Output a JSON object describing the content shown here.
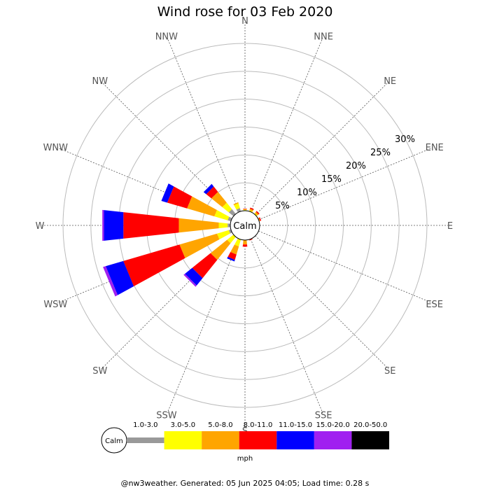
{
  "chart_data": {
    "type": "wind-rose",
    "title": "Wind rose for 03 Feb 2020",
    "directions": [
      "N",
      "NNE",
      "NE",
      "ENE",
      "E",
      "ESE",
      "SE",
      "SSE",
      "S",
      "SSW",
      "SW",
      "WSW",
      "W",
      "WNW",
      "NW",
      "NNW"
    ],
    "radial_ticks": [
      "5%",
      "10%",
      "15%",
      "20%",
      "25%",
      "30%"
    ],
    "rmax_percent": 30,
    "center_label": "Calm",
    "unit": "mph",
    "bins": [
      {
        "label": "1.0-3.0",
        "color": "#999999"
      },
      {
        "label": "3.0-5.0",
        "color": "#ffff00"
      },
      {
        "label": "5.0-8.0",
        "color": "#ffa500"
      },
      {
        "label": "8.0-11.0",
        "color": "#ff0000"
      },
      {
        "label": "11.0-15.0",
        "color": "#0000ff"
      },
      {
        "label": "15.0-20.0",
        "color": "#a020f0"
      },
      {
        "label": "20.0-50.0",
        "color": "#000000"
      }
    ],
    "series": [
      {
        "direction": "N",
        "values": [
          0.1,
          0.1,
          0.1,
          0.1,
          0,
          0,
          0
        ]
      },
      {
        "direction": "NNE",
        "values": [
          0,
          0.2,
          0.3,
          0.2,
          0,
          0,
          0
        ]
      },
      {
        "direction": "NE",
        "values": [
          0,
          0.2,
          0.3,
          0.2,
          0,
          0,
          0
        ]
      },
      {
        "direction": "ENE",
        "values": [
          0,
          0,
          0.2,
          0.2,
          0,
          0,
          0
        ]
      },
      {
        "direction": "E",
        "values": [
          0,
          0,
          0,
          0,
          0,
          0,
          0
        ]
      },
      {
        "direction": "ESE",
        "values": [
          0,
          0,
          0,
          0,
          0,
          0,
          0
        ]
      },
      {
        "direction": "SE",
        "values": [
          0,
          0,
          0,
          0,
          0,
          0,
          0
        ]
      },
      {
        "direction": "SSE",
        "values": [
          0,
          0,
          0.1,
          0.1,
          0,
          0,
          0
        ]
      },
      {
        "direction": "S",
        "values": [
          0,
          0,
          0.8,
          0.4,
          0,
          0,
          0
        ]
      },
      {
        "direction": "SSW",
        "values": [
          0,
          1.3,
          1.5,
          1.0,
          0.3,
          0,
          0
        ]
      },
      {
        "direction": "SW",
        "values": [
          0,
          1.5,
          3.8,
          4.2,
          1.7,
          0.3,
          0
        ]
      },
      {
        "direction": "WSW",
        "values": [
          0.4,
          2.2,
          7.0,
          10.5,
          3.3,
          0.5,
          0
        ]
      },
      {
        "direction": "W",
        "values": [
          0.5,
          1.6,
          7.2,
          10.0,
          3.5,
          0.3,
          0
        ]
      },
      {
        "direction": "WNW",
        "values": [
          0.6,
          2.5,
          5.1,
          3.7,
          1.1,
          0,
          0
        ]
      },
      {
        "direction": "NW",
        "values": [
          1.1,
          1.5,
          2.5,
          1.2,
          0.6,
          0,
          0
        ]
      },
      {
        "direction": "NNW",
        "values": [
          0.6,
          0.9,
          0.2,
          0,
          0,
          0,
          0
        ]
      }
    ]
  },
  "footer": "@nw3weather. Generated: 05 Jun 2025 04:05; Load time: 0.28 s"
}
